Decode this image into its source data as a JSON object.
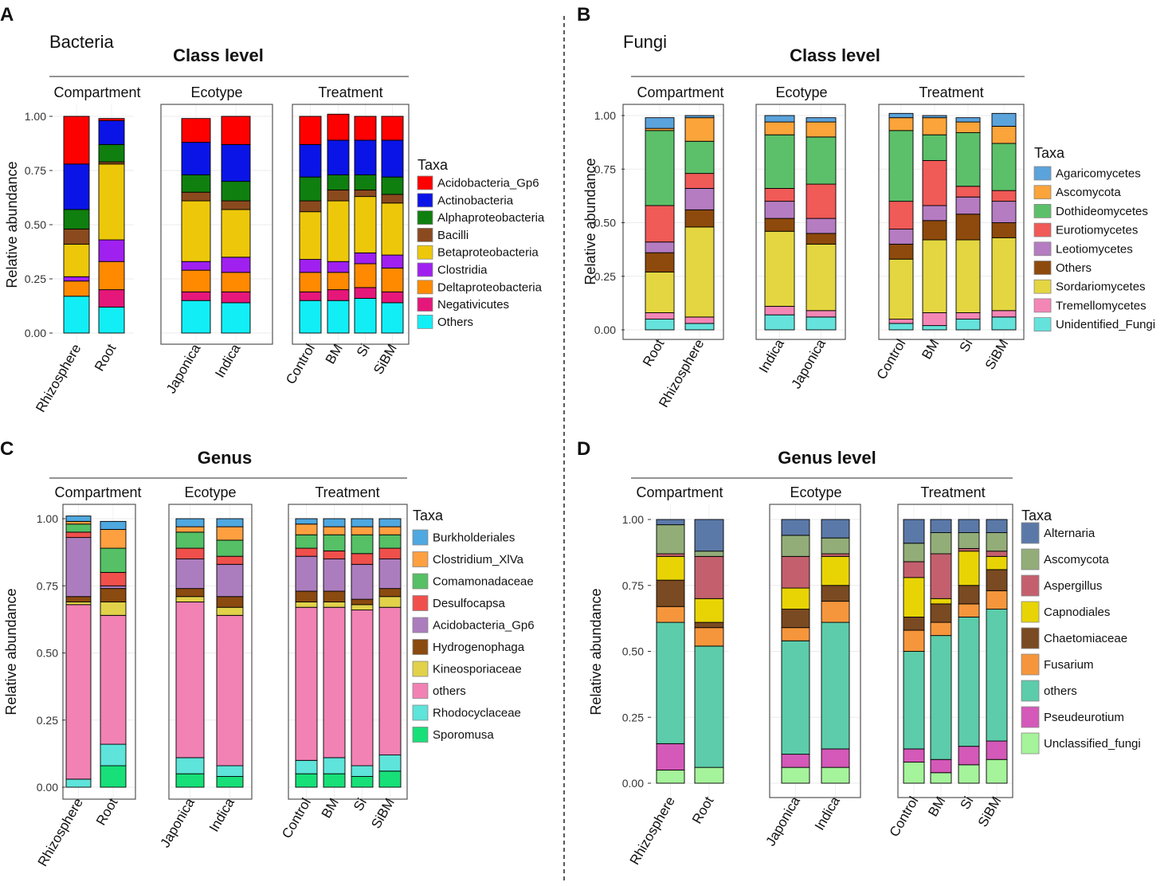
{
  "chart_data": [
    {
      "panel": "A",
      "kingdom": "Bacteria",
      "title": "Class level",
      "type": "bar",
      "stacked": true,
      "ylabel": "Relative abundance",
      "ylim": [
        0,
        1
      ],
      "yticks": [
        "0.00",
        "0.25",
        "0.50",
        "0.75",
        "1.00"
      ],
      "legend_title": "Taxa",
      "taxa": [
        {
          "name": "Acidobacteria_Gp6",
          "color": "#FF0000"
        },
        {
          "name": "Actinobacteria",
          "color": "#0A14E6"
        },
        {
          "name": "Alphaproteobacteria",
          "color": "#0F7F0F"
        },
        {
          "name": "Bacilli",
          "color": "#8B4A1E"
        },
        {
          "name": "Betaproteobacteria",
          "color": "#EDC80A"
        },
        {
          "name": "Clostridia",
          "color": "#A020F0"
        },
        {
          "name": "Deltaproteobacteria",
          "color": "#FF8A00"
        },
        {
          "name": "Negativicutes",
          "color": "#E6177A"
        },
        {
          "name": "Others",
          "color": "#12EEF5"
        }
      ],
      "facets": [
        {
          "label": "Compartment",
          "bars": [
            {
              "label": "Rhizosphere",
              "values": [
                0.22,
                0.21,
                0.09,
                0.07,
                0.15,
                0.02,
                0.07,
                0.0,
                0.17
              ]
            },
            {
              "label": "Root",
              "values": [
                0.01,
                0.11,
                0.08,
                0.01,
                0.35,
                0.1,
                0.13,
                0.08,
                0.12
              ]
            }
          ]
        },
        {
          "label": "Ecotype",
          "bars": [
            {
              "label": "Japonica",
              "values": [
                0.11,
                0.15,
                0.08,
                0.04,
                0.28,
                0.04,
                0.1,
                0.04,
                0.15
              ]
            },
            {
              "label": "Indica",
              "values": [
                0.13,
                0.17,
                0.09,
                0.04,
                0.22,
                0.07,
                0.09,
                0.05,
                0.14
              ]
            }
          ]
        },
        {
          "label": "Treatment",
          "bars": [
            {
              "label": "Control",
              "values": [
                0.13,
                0.15,
                0.11,
                0.05,
                0.22,
                0.06,
                0.09,
                0.04,
                0.15
              ]
            },
            {
              "label": "BM",
              "values": [
                0.12,
                0.16,
                0.07,
                0.05,
                0.28,
                0.05,
                0.08,
                0.05,
                0.15
              ]
            },
            {
              "label": "Si",
              "values": [
                0.11,
                0.16,
                0.07,
                0.03,
                0.26,
                0.05,
                0.11,
                0.05,
                0.16
              ]
            },
            {
              "label": "SiBM",
              "values": [
                0.11,
                0.17,
                0.08,
                0.04,
                0.24,
                0.06,
                0.11,
                0.05,
                0.14
              ]
            }
          ]
        }
      ]
    },
    {
      "panel": "B",
      "kingdom": "Fungi",
      "title": "Class level",
      "type": "bar",
      "stacked": true,
      "ylabel": "Relative abundance",
      "ylim": [
        0,
        1
      ],
      "yticks": [
        "0.00",
        "0.25",
        "0.50",
        "0.75",
        "1.00"
      ],
      "legend_title": "Taxa",
      "taxa": [
        {
          "name": "Agaricomycetes",
          "color": "#5BA3DB"
        },
        {
          "name": "Ascomycota",
          "color": "#FAA43A"
        },
        {
          "name": "Dothideomycetes",
          "color": "#5CC06A"
        },
        {
          "name": "Eurotiomycetes",
          "color": "#F05A57"
        },
        {
          "name": "Leotiomycetes",
          "color": "#B57CC1"
        },
        {
          "name": "Others",
          "color": "#8E4A0C"
        },
        {
          "name": "Sordariomycetes",
          "color": "#E4D641"
        },
        {
          "name": "Tremellomycetes",
          "color": "#F486B6"
        },
        {
          "name": "Unidentified_Fungi",
          "color": "#66E2DC"
        }
      ],
      "facets": [
        {
          "label": "Compartment",
          "bars": [
            {
              "label": "Root",
              "values": [
                0.05,
                0.01,
                0.35,
                0.17,
                0.05,
                0.09,
                0.19,
                0.03,
                0.05
              ]
            },
            {
              "label": "Rhizosphere",
              "values": [
                0.01,
                0.11,
                0.15,
                0.07,
                0.1,
                0.08,
                0.42,
                0.03,
                0.03
              ]
            }
          ]
        },
        {
          "label": "Ecotype",
          "bars": [
            {
              "label": "Indica",
              "values": [
                0.03,
                0.06,
                0.25,
                0.06,
                0.08,
                0.06,
                0.35,
                0.04,
                0.07
              ]
            },
            {
              "label": "Japonica",
              "values": [
                0.02,
                0.07,
                0.22,
                0.16,
                0.07,
                0.05,
                0.31,
                0.03,
                0.06
              ]
            }
          ]
        },
        {
          "label": "Treatment",
          "bars": [
            {
              "label": "Control",
              "values": [
                0.02,
                0.06,
                0.33,
                0.13,
                0.07,
                0.07,
                0.28,
                0.02,
                0.03
              ]
            },
            {
              "label": "BM",
              "values": [
                0.01,
                0.08,
                0.12,
                0.21,
                0.07,
                0.09,
                0.34,
                0.06,
                0.02
              ]
            },
            {
              "label": "Si",
              "values": [
                0.02,
                0.05,
                0.25,
                0.05,
                0.08,
                0.12,
                0.34,
                0.03,
                0.05
              ]
            },
            {
              "label": "SiBM",
              "values": [
                0.06,
                0.08,
                0.22,
                0.05,
                0.1,
                0.07,
                0.34,
                0.03,
                0.06
              ]
            }
          ]
        }
      ]
    },
    {
      "panel": "C",
      "kingdom": "",
      "title": "Genus",
      "type": "bar",
      "stacked": true,
      "ylabel": "Relative abundance",
      "ylim": [
        0,
        1
      ],
      "yticks": [
        "0.00",
        "0.25",
        "0.50",
        "0.75",
        "1.00"
      ],
      "legend_title": "Taxa",
      "taxa": [
        {
          "name": "Burkholderiales",
          "color": "#4FA8E0"
        },
        {
          "name": "Clostridium_XlVa",
          "color": "#FFA040"
        },
        {
          "name": "Comamonadaceae",
          "color": "#55C066"
        },
        {
          "name": "Desulfocapsa",
          "color": "#F0504C"
        },
        {
          "name": "Acidobacteria_Gp6",
          "color": "#AC7DBE"
        },
        {
          "name": "Hydrogenophaga",
          "color": "#8A4A10"
        },
        {
          "name": "Kineosporiaceae",
          "color": "#E2D24A"
        },
        {
          "name": "others",
          "color": "#F282B4"
        },
        {
          "name": "Rhodocyclaceae",
          "color": "#5EE4DA"
        },
        {
          "name": "Sporomusa",
          "color": "#18E078"
        }
      ],
      "facets": [
        {
          "label": "Compartment",
          "bars": [
            {
              "label": "Rhizosphere",
              "values": [
                0.02,
                0.01,
                0.03,
                0.02,
                0.22,
                0.02,
                0.01,
                0.65,
                0.03,
                0.0
              ]
            },
            {
              "label": "Root",
              "values": [
                0.03,
                0.07,
                0.09,
                0.05,
                0.01,
                0.05,
                0.05,
                0.48,
                0.08,
                0.08
              ]
            }
          ]
        },
        {
          "label": "Ecotype",
          "bars": [
            {
              "label": "Japonica",
              "values": [
                0.03,
                0.02,
                0.06,
                0.04,
                0.11,
                0.03,
                0.02,
                0.58,
                0.06,
                0.05
              ]
            },
            {
              "label": "Indica",
              "values": [
                0.03,
                0.05,
                0.06,
                0.03,
                0.12,
                0.04,
                0.03,
                0.56,
                0.04,
                0.04
              ]
            }
          ]
        },
        {
          "label": "Treatment",
          "bars": [
            {
              "label": "Control",
              "values": [
                0.02,
                0.04,
                0.05,
                0.03,
                0.13,
                0.04,
                0.02,
                0.57,
                0.05,
                0.05
              ]
            },
            {
              "label": "BM",
              "values": [
                0.03,
                0.03,
                0.06,
                0.03,
                0.12,
                0.04,
                0.02,
                0.56,
                0.06,
                0.05
              ]
            },
            {
              "label": "Si",
              "values": [
                0.03,
                0.03,
                0.07,
                0.04,
                0.13,
                0.02,
                0.02,
                0.58,
                0.04,
                0.04
              ]
            },
            {
              "label": "SiBM",
              "values": [
                0.03,
                0.03,
                0.05,
                0.04,
                0.11,
                0.03,
                0.04,
                0.55,
                0.06,
                0.06
              ]
            }
          ]
        }
      ]
    },
    {
      "panel": "D",
      "kingdom": "",
      "title": "Genus level",
      "type": "bar",
      "stacked": true,
      "ylabel": "Relative abundance",
      "ylim": [
        0,
        1
      ],
      "yticks": [
        "0.00",
        "0.25",
        "0.50",
        "0.75",
        "1.00"
      ],
      "legend_title": "Taxa",
      "taxa": [
        {
          "name": "Alternaria",
          "color": "#5B79A8"
        },
        {
          "name": "Ascomycota",
          "color": "#93AD78"
        },
        {
          "name": "Aspergillus",
          "color": "#C4606E"
        },
        {
          "name": "Capnodiales",
          "color": "#E8D405"
        },
        {
          "name": "Chaetomiaceae",
          "color": "#7A4A22"
        },
        {
          "name": "Fusarium",
          "color": "#F6963C"
        },
        {
          "name": "others",
          "color": "#5CCCAA"
        },
        {
          "name": "Pseudeurotium",
          "color": "#D459B9"
        },
        {
          "name": "Unclassified_fungi",
          "color": "#A5F39A"
        }
      ],
      "facets": [
        {
          "label": "Compartment",
          "bars": [
            {
              "label": "Rhizosphere",
              "values": [
                0.02,
                0.11,
                0.01,
                0.09,
                0.1,
                0.06,
                0.46,
                0.1,
                0.05
              ]
            },
            {
              "label": "Root",
              "values": [
                0.12,
                0.02,
                0.16,
                0.09,
                0.02,
                0.07,
                0.46,
                0.0,
                0.06
              ]
            }
          ]
        },
        {
          "label": "Ecotype",
          "bars": [
            {
              "label": "Japonica",
              "values": [
                0.06,
                0.08,
                0.12,
                0.08,
                0.07,
                0.05,
                0.43,
                0.05,
                0.06
              ]
            },
            {
              "label": "Indica",
              "values": [
                0.07,
                0.06,
                0.01,
                0.11,
                0.06,
                0.08,
                0.48,
                0.07,
                0.06
              ]
            }
          ]
        },
        {
          "label": "Treatment",
          "bars": [
            {
              "label": "Control",
              "values": [
                0.09,
                0.07,
                0.06,
                0.15,
                0.05,
                0.08,
                0.37,
                0.05,
                0.08
              ]
            },
            {
              "label": "BM",
              "values": [
                0.05,
                0.08,
                0.17,
                0.02,
                0.07,
                0.05,
                0.47,
                0.05,
                0.04
              ]
            },
            {
              "label": "Si",
              "values": [
                0.05,
                0.06,
                0.01,
                0.13,
                0.07,
                0.05,
                0.49,
                0.07,
                0.07
              ]
            },
            {
              "label": "SiBM",
              "values": [
                0.05,
                0.07,
                0.02,
                0.05,
                0.08,
                0.07,
                0.5,
                0.07,
                0.09
              ]
            }
          ]
        }
      ]
    }
  ]
}
